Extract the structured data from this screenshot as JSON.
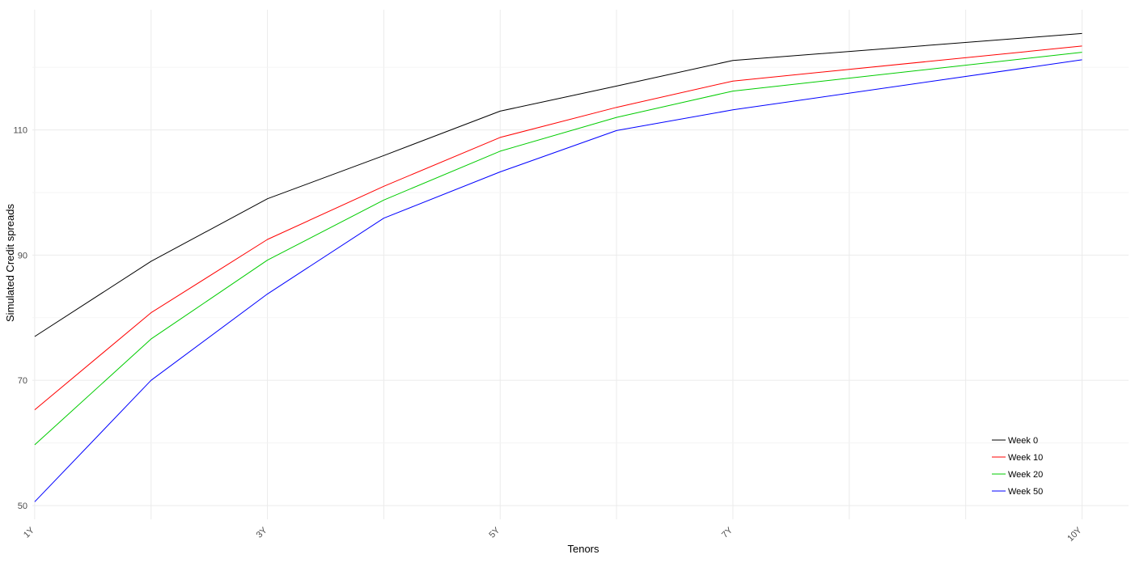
{
  "chart_data": {
    "type": "line",
    "title": "",
    "xlabel": "Tenors",
    "ylabel": "Simulated Credit spreads",
    "x": [
      1,
      2,
      3,
      4,
      5,
      6,
      7,
      8,
      9,
      10
    ],
    "x_tick_values": [
      1,
      3,
      5,
      7,
      10
    ],
    "x_tick_labels": [
      "1Y",
      "3Y",
      "5Y",
      "7Y",
      "10Y"
    ],
    "xlim": [
      0.98,
      10.4
    ],
    "y_ticks": [
      50,
      70,
      90,
      110
    ],
    "ylim": [
      47.8,
      129.2
    ],
    "grid": true,
    "legend_position": "bottom-right",
    "series": [
      {
        "name": "Week 0",
        "color": "#000000",
        "values": [
          77.0,
          89.0,
          99.0,
          105.9,
          113.0,
          117.0,
          121.1,
          null,
          null,
          125.4
        ]
      },
      {
        "name": "Week 10",
        "color": "#ff0000",
        "values": [
          65.3,
          80.8,
          92.5,
          101.0,
          108.8,
          113.6,
          117.8,
          null,
          null,
          123.4
        ]
      },
      {
        "name": "Week 20",
        "color": "#00cc00",
        "values": [
          59.7,
          76.6,
          89.2,
          98.8,
          106.6,
          112.0,
          116.2,
          null,
          null,
          122.4
        ]
      },
      {
        "name": "Week 50",
        "color": "#0000ff",
        "values": [
          50.6,
          70.0,
          83.8,
          95.9,
          103.3,
          109.9,
          113.2,
          null,
          null,
          121.2
        ]
      }
    ]
  }
}
